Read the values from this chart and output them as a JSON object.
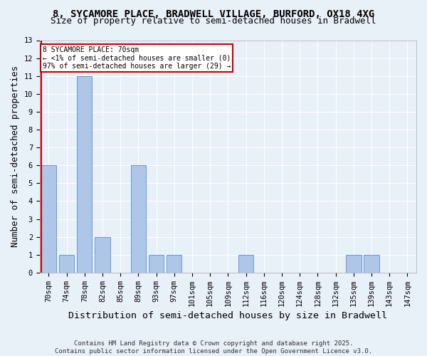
{
  "title_line1": "8, SYCAMORE PLACE, BRADWELL VILLAGE, BURFORD, OX18 4XG",
  "title_line2": "Size of property relative to semi-detached houses in Bradwell",
  "xlabel": "Distribution of semi-detached houses by size in Bradwell",
  "ylabel": "Number of semi-detached properties",
  "categories": [
    "70sqm",
    "74sqm",
    "78sqm",
    "82sqm",
    "85sqm",
    "89sqm",
    "93sqm",
    "97sqm",
    "101sqm",
    "105sqm",
    "109sqm",
    "112sqm",
    "116sqm",
    "120sqm",
    "124sqm",
    "128sqm",
    "132sqm",
    "135sqm",
    "139sqm",
    "143sqm",
    "147sqm"
  ],
  "values": [
    6,
    1,
    11,
    2,
    0,
    6,
    1,
    1,
    0,
    0,
    0,
    1,
    0,
    0,
    0,
    0,
    0,
    1,
    1,
    0,
    0
  ],
  "highlight_index": 0,
  "bar_color": "#aec6e8",
  "bar_edge_color": "#5b8fc9",
  "ylim": [
    0,
    13
  ],
  "yticks": [
    0,
    1,
    2,
    3,
    4,
    5,
    6,
    7,
    8,
    9,
    10,
    11,
    12,
    13
  ],
  "annotation_text": "8 SYCAMORE PLACE: 70sqm\n← <1% of semi-detached houses are smaller (0)\n97% of semi-detached houses are larger (29) →",
  "annotation_box_color": "#ffffff",
  "annotation_box_edge": "#cc0000",
  "vline_color": "#cc0000",
  "vline_x": 0,
  "footer_line1": "Contains HM Land Registry data © Crown copyright and database right 2025.",
  "footer_line2": "Contains public sector information licensed under the Open Government Licence v3.0.",
  "background_color": "#e8f0f8",
  "grid_color": "#ffffff",
  "title_fontsize": 10,
  "subtitle_fontsize": 9,
  "axis_label_fontsize": 9,
  "tick_fontsize": 7.5,
  "annotation_fontsize": 7,
  "footer_fontsize": 6.5
}
